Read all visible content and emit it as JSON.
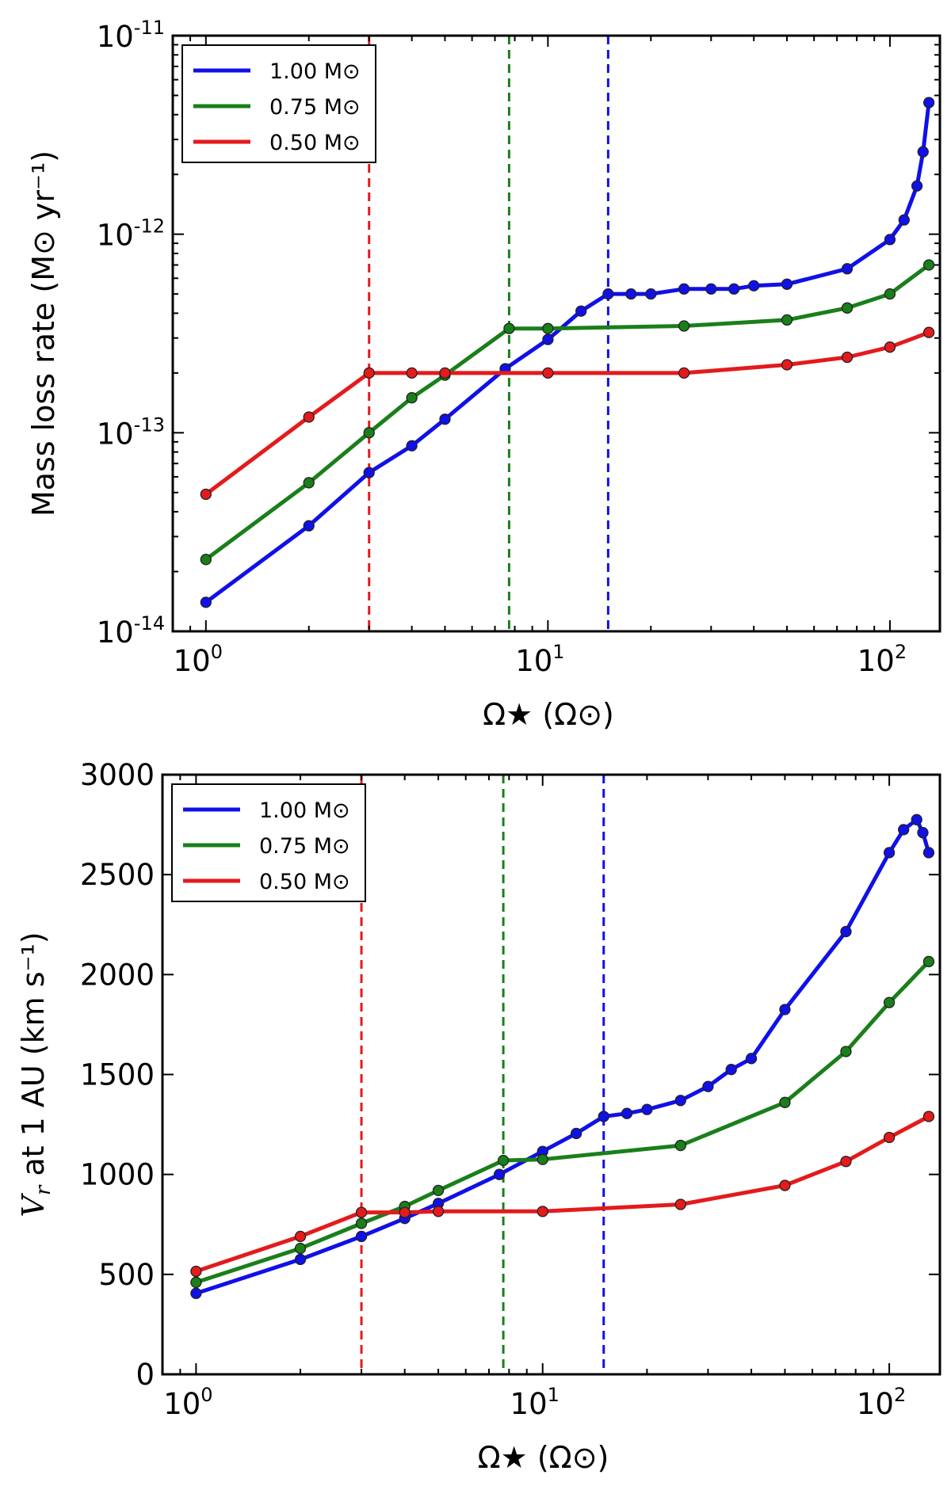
{
  "chart_data": [
    {
      "type": "line",
      "ylabel": "Mass loss rate (M⊙ yr⁻¹)",
      "xlabel": "Ω★ (Ω⊙)",
      "xscale": "log",
      "yscale": "log",
      "xlim": [
        0.8,
        140
      ],
      "ylim": [
        1e-14,
        1e-11
      ],
      "xticks": [
        {
          "base": "10",
          "exp": "0"
        },
        {
          "base": "10",
          "exp": "1"
        },
        {
          "base": "10",
          "exp": "2"
        }
      ],
      "yticks": [
        {
          "base": "10",
          "exp": "-14"
        },
        {
          "base": "10",
          "exp": "-13"
        },
        {
          "base": "10",
          "exp": "-12"
        },
        {
          "base": "10",
          "exp": "-11"
        }
      ],
      "legend": {
        "placement": "top-left"
      },
      "vlines": [
        {
          "x": 3.0,
          "color": "#e41a1c"
        },
        {
          "x": 7.7,
          "color": "#1a7f1a"
        },
        {
          "x": 15.0,
          "color": "#1010e8"
        }
      ],
      "series": [
        {
          "name": "1.00 M⊙",
          "color": "#1010e8",
          "x": [
            1,
            2,
            3,
            4,
            5,
            7.5,
            10,
            12.5,
            15,
            17.5,
            20,
            25,
            30,
            35,
            40,
            50,
            75,
            100,
            110,
            120,
            125,
            130
          ],
          "y": [
            1.4e-14,
            3.4e-14,
            6.3e-14,
            8.6e-14,
            1.17e-13,
            2.1e-13,
            2.95e-13,
            4.1e-13,
            5e-13,
            5e-13,
            5e-13,
            5.3e-13,
            5.3e-13,
            5.3e-13,
            5.5e-13,
            5.6e-13,
            6.7e-13,
            9.4e-13,
            1.18e-12,
            1.75e-12,
            2.6e-12,
            4.6e-12
          ]
        },
        {
          "name": "0.75 M⊙",
          "color": "#1a7f1a",
          "x": [
            1,
            2,
            3,
            4,
            5,
            7.7,
            10,
            25,
            50,
            75,
            100,
            130
          ],
          "y": [
            2.3e-14,
            5.6e-14,
            1e-13,
            1.5e-13,
            1.95e-13,
            3.35e-13,
            3.35e-13,
            3.45e-13,
            3.7e-13,
            4.25e-13,
            5e-13,
            7e-13
          ]
        },
        {
          "name": "0.50 M⊙",
          "color": "#e41a1c",
          "x": [
            1,
            2,
            3,
            4,
            5,
            10,
            25,
            50,
            75,
            100,
            130
          ],
          "y": [
            4.9e-14,
            1.2e-13,
            2e-13,
            2e-13,
            2e-13,
            2e-13,
            2e-13,
            2.2e-13,
            2.4e-13,
            2.7e-13,
            3.2e-13
          ]
        }
      ]
    },
    {
      "type": "line",
      "ylabel": "at 1 AU (km s⁻¹)",
      "ylabel_var": "V",
      "ylabel_sub": "r",
      "xlabel": "Ω★ (Ω⊙)",
      "xscale": "log",
      "yscale": "linear",
      "xlim": [
        0.8,
        140
      ],
      "ylim": [
        0,
        3000
      ],
      "xticks": [
        {
          "base": "10",
          "exp": "0"
        },
        {
          "base": "10",
          "exp": "1"
        },
        {
          "base": "10",
          "exp": "2"
        }
      ],
      "yticks": [
        "0",
        "500",
        "1000",
        "1500",
        "2000",
        "2500",
        "3000"
      ],
      "legend": {
        "placement": "top-left"
      },
      "vlines": [
        {
          "x": 3.0,
          "color": "#e41a1c"
        },
        {
          "x": 7.7,
          "color": "#1a7f1a"
        },
        {
          "x": 15.0,
          "color": "#1010e8"
        }
      ],
      "series": [
        {
          "name": "1.00 M⊙",
          "color": "#1010e8",
          "x": [
            1,
            2,
            3,
            4,
            5,
            7.5,
            10,
            12.5,
            15,
            17.5,
            20,
            25,
            30,
            35,
            40,
            50,
            75,
            100,
            110,
            120,
            125,
            130
          ],
          "y": [
            405,
            575,
            690,
            780,
            855,
            1000,
            1115,
            1205,
            1290,
            1305,
            1325,
            1370,
            1440,
            1525,
            1580,
            1825,
            2215,
            2610,
            2725,
            2775,
            2710,
            2610
          ]
        },
        {
          "name": "0.75 M⊙",
          "color": "#1a7f1a",
          "x": [
            1,
            2,
            3,
            4,
            5,
            7.7,
            10,
            25,
            50,
            75,
            100,
            130
          ],
          "y": [
            460,
            630,
            755,
            840,
            920,
            1070,
            1075,
            1145,
            1360,
            1615,
            1860,
            2065
          ]
        },
        {
          "name": "0.50 M⊙",
          "color": "#e41a1c",
          "x": [
            1,
            2,
            3,
            4,
            5,
            10,
            25,
            50,
            75,
            100,
            130
          ],
          "y": [
            515,
            690,
            810,
            810,
            815,
            815,
            850,
            945,
            1065,
            1185,
            1290
          ]
        }
      ]
    }
  ]
}
